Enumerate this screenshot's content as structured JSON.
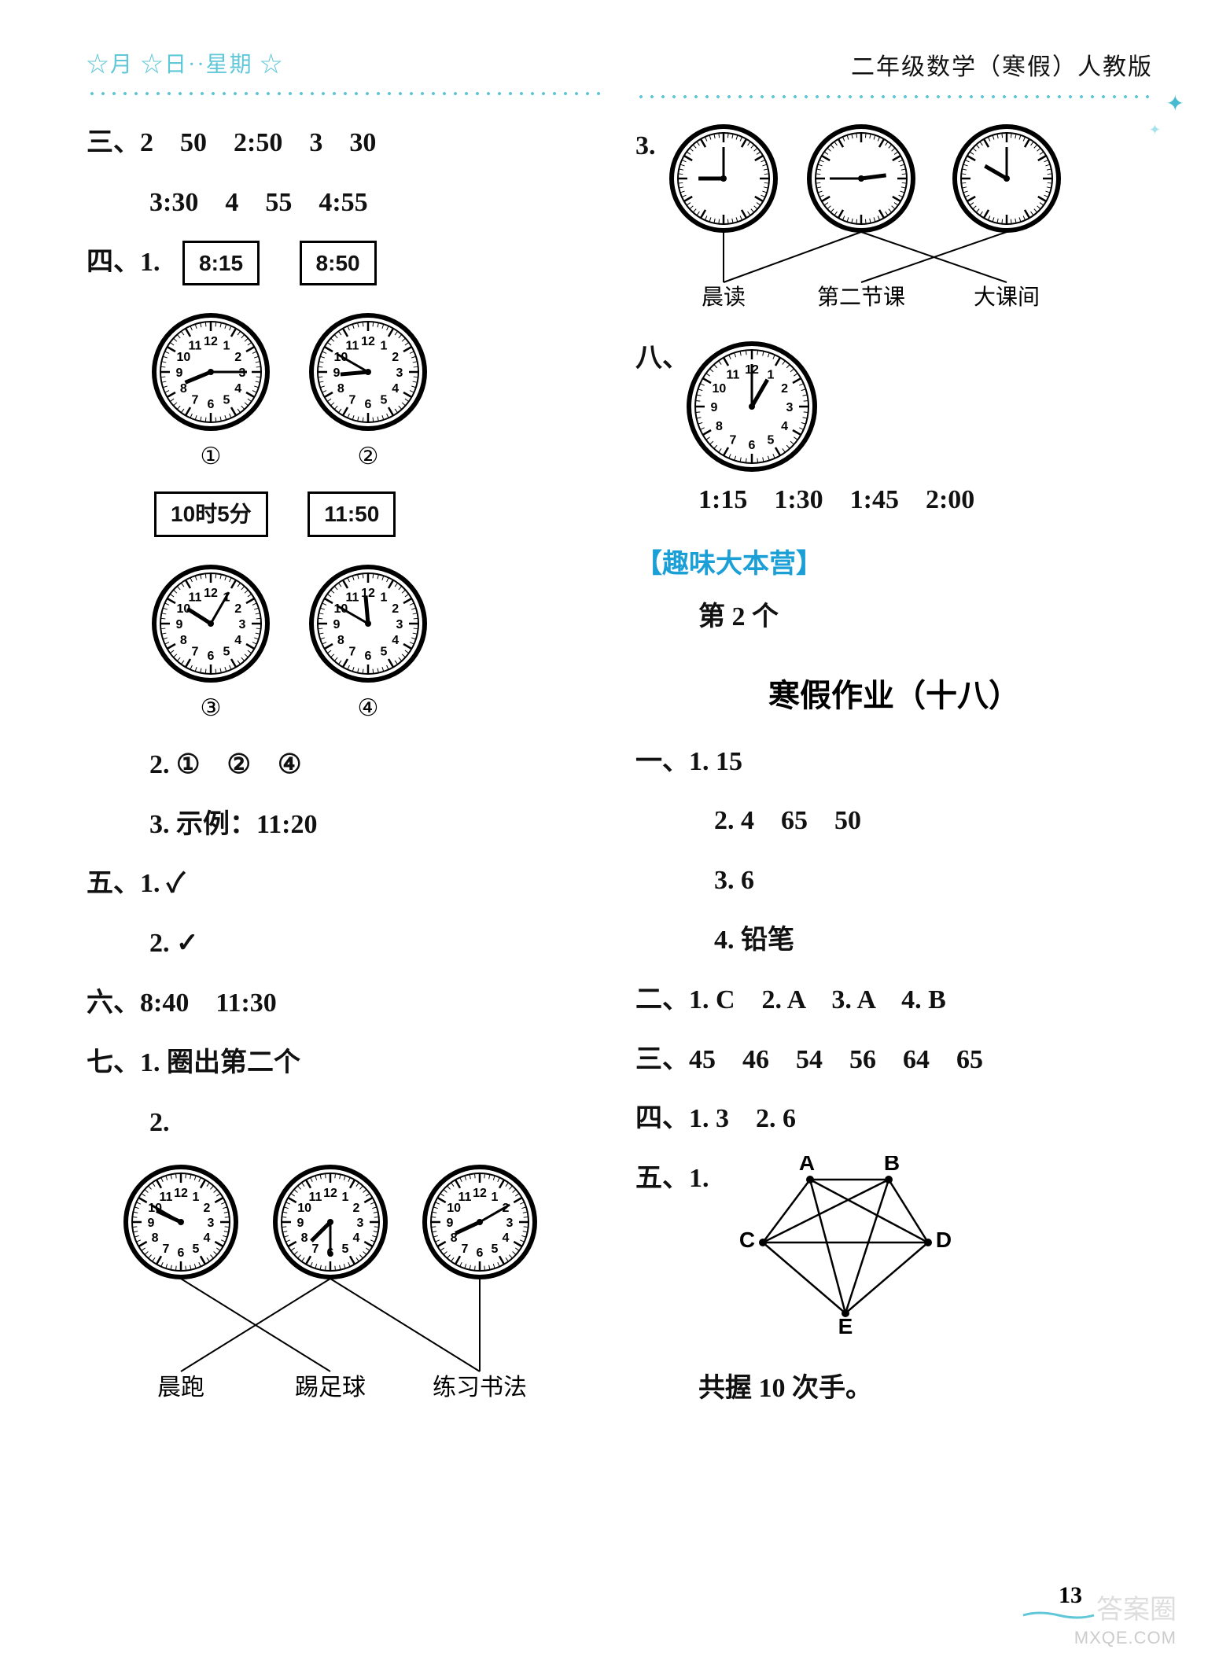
{
  "header": {
    "left": "☆月 ☆日··星期 ☆",
    "right": "二年级数学（寒假）人教版"
  },
  "left": {
    "l1": "三、2　50　2:50　3　30",
    "l2": "3:30　4　55　4:55",
    "l3": "四、1.",
    "tb": [
      "8:15",
      "8:50",
      "10时5分",
      "11:50"
    ],
    "clocks_top": [
      {
        "h": 8,
        "m": 15
      },
      {
        "h": 8,
        "m": 50
      }
    ],
    "clocks_bot": [
      {
        "h": 10,
        "m": 5
      },
      {
        "h": 11,
        "m": 50
      }
    ],
    "circled": [
      "①",
      "②",
      "③",
      "④"
    ],
    "l4": "2. ①　②　④",
    "l5": "3. 示例：11:20",
    "l6": "五、1. ✓",
    "l7": "2. ✓",
    "l8": "六、8:40　11:30",
    "l9": "七、1. 圈出第二个",
    "l10": "2.",
    "match_clocks": [
      {
        "h": 9,
        "m": 50
      },
      {
        "h": 7,
        "m": 30
      },
      {
        "h": 8,
        "m": 10
      }
    ],
    "match_labels": [
      "晨跑",
      "踢足球",
      "练习书法"
    ],
    "match_lines": [
      [
        0,
        1
      ],
      [
        1,
        0
      ],
      [
        2,
        2
      ],
      [
        1,
        2
      ]
    ]
  },
  "right": {
    "l1": "3.",
    "top_clocks": [
      {
        "h": 9,
        "m": 0
      },
      {
        "h": 2,
        "m": 45
      },
      {
        "h": 10,
        "m": 0
      }
    ],
    "top_labels": [
      "晨读",
      "第二节课",
      "大课间"
    ],
    "top_lines": [
      [
        0,
        0
      ],
      [
        1,
        2
      ],
      [
        2,
        1
      ],
      [
        1,
        0
      ]
    ],
    "l2": "八、",
    "eight_clock": {
      "h": 1,
      "m": 0
    },
    "l3": "1:15　1:30　1:45　2:00",
    "l4": "【趣味大本营】",
    "l5": "第 2 个",
    "l6": "寒假作业（十八）",
    "l7": "一、1. 15",
    "l8": "2. 4　65　50",
    "l9": "3. 6",
    "l10": "4. 铅笔",
    "l11": "二、1. C　2. A　3. A　4. B",
    "l12": "三、45　46　54　56　64　65",
    "l13": "四、1. 3　2. 6",
    "l14": "五、1.",
    "pentagon": {
      "labels": [
        "A",
        "B",
        "C",
        "D",
        "E"
      ]
    },
    "l15": "共握 10 次手。"
  },
  "pagenum": "13",
  "watermark": "MXQE.COM",
  "watermark2": "答案圈",
  "clock_style": {
    "radius": 70,
    "big_radius": 80,
    "border": "#000",
    "face": "#fff",
    "tick": "#000",
    "hand": "#000"
  }
}
